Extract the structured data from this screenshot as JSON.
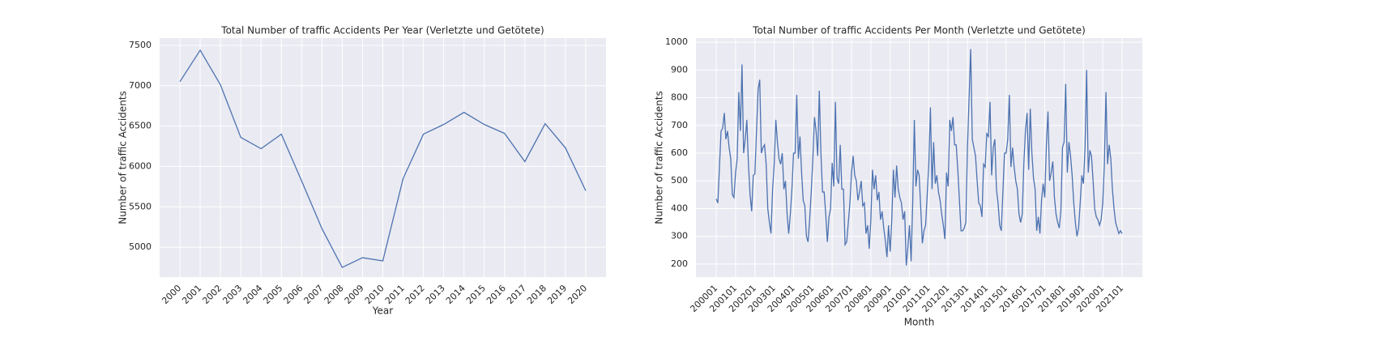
{
  "chart_data": [
    {
      "type": "line",
      "title": "Total Number of traffic Accidents Per Year (Verletzte und Getötete)",
      "x_label": "Year",
      "y_label": "Number of traffic Accidents",
      "x": [
        2000,
        2001,
        2002,
        2003,
        2004,
        2005,
        2006,
        2007,
        2008,
        2009,
        2010,
        2011,
        2012,
        2013,
        2014,
        2015,
        2016,
        2017,
        2018,
        2019,
        2020
      ],
      "values": [
        7050,
        7440,
        7010,
        6360,
        6220,
        6400,
        5820,
        5230,
        4750,
        4870,
        4830,
        5850,
        6400,
        6520,
        6670,
        6520,
        6410,
        6060,
        6530,
        6230,
        5700
      ],
      "color": "#4c72b0",
      "xlim": [
        1999,
        2021
      ],
      "xticks": [
        2000,
        2001,
        2002,
        2003,
        2004,
        2005,
        2006,
        2007,
        2008,
        2009,
        2010,
        2011,
        2012,
        2013,
        2014,
        2015,
        2016,
        2017,
        2018,
        2019,
        2020
      ],
      "ylim": [
        4630,
        7590
      ],
      "yticks": [
        5000,
        5500,
        6000,
        6500,
        7000,
        7500
      ],
      "grid": true
    },
    {
      "type": "line",
      "title": "Total Number of traffic Accidents Per Month (Verletzte und Getötete)",
      "x_label": "Month",
      "y_label": "Number of traffic Accidents",
      "categories": [
        "200001",
        null,
        null,
        null,
        null,
        null,
        null,
        null,
        null,
        null,
        null,
        null,
        "200101",
        null,
        null,
        null,
        null,
        null,
        null,
        null,
        null,
        null,
        null,
        null,
        "200201",
        null,
        null,
        null,
        null,
        null,
        null,
        null,
        null,
        null,
        null,
        null,
        "200301",
        null,
        null,
        null,
        null,
        null,
        null,
        null,
        null,
        null,
        null,
        null,
        "200401",
        null,
        null,
        null,
        null,
        null,
        null,
        null,
        null,
        null,
        null,
        null,
        "200501",
        null,
        null,
        null,
        null,
        null,
        null,
        null,
        null,
        null,
        null,
        null,
        "200601",
        null,
        null,
        null,
        null,
        null,
        null,
        null,
        null,
        null,
        null,
        null,
        "200701",
        null,
        null,
        null,
        null,
        null,
        null,
        null,
        null,
        null,
        null,
        null,
        "200801",
        null,
        null,
        null,
        null,
        null,
        null,
        null,
        null,
        null,
        null,
        null,
        "200901",
        null,
        null,
        null,
        null,
        null,
        null,
        null,
        null,
        null,
        null,
        null,
        "201001",
        null,
        null,
        null,
        null,
        null,
        null,
        null,
        null,
        null,
        null,
        null,
        "201101",
        null,
        null,
        null,
        null,
        null,
        null,
        null,
        null,
        null,
        null,
        null,
        "201201",
        null,
        null,
        null,
        null,
        null,
        null,
        null,
        null,
        null,
        null,
        null,
        "201301",
        null,
        null,
        null,
        null,
        null,
        null,
        null,
        null,
        null,
        null,
        null,
        "201401",
        null,
        null,
        null,
        null,
        null,
        null,
        null,
        null,
        null,
        null,
        null,
        "201501",
        null,
        null,
        null,
        null,
        null,
        null,
        null,
        null,
        null,
        null,
        null,
        "201601",
        null,
        null,
        null,
        null,
        null,
        null,
        null,
        null,
        null,
        null,
        null,
        "201701",
        null,
        null,
        null,
        null,
        null,
        null,
        null,
        null,
        null,
        null,
        null,
        "201801",
        null,
        null,
        null,
        null,
        null,
        null,
        null,
        null,
        null,
        null,
        null,
        "201901",
        null,
        null,
        null,
        null,
        null,
        null,
        null,
        null,
        null,
        null,
        null,
        "202001",
        null,
        null,
        null,
        null,
        null,
        null,
        null,
        null,
        null,
        null,
        null,
        "202101"
      ],
      "values": [
        435,
        420,
        550,
        680,
        690,
        745,
        650,
        680,
        620,
        580,
        450,
        440,
        530,
        580,
        820,
        680,
        920,
        600,
        650,
        720,
        560,
        450,
        390,
        520,
        525,
        680,
        830,
        865,
        600,
        620,
        630,
        560,
        400,
        350,
        310,
        470,
        560,
        720,
        640,
        580,
        560,
        600,
        470,
        500,
        380,
        310,
        380,
        470,
        600,
        600,
        810,
        580,
        660,
        530,
        430,
        410,
        300,
        280,
        360,
        460,
        580,
        730,
        680,
        590,
        825,
        600,
        460,
        460,
        380,
        280,
        370,
        400,
        565,
        480,
        785,
        510,
        490,
        630,
        470,
        470,
        270,
        280,
        350,
        420,
        530,
        590,
        520,
        500,
        430,
        460,
        500,
        410,
        420,
        310,
        340,
        255,
        360,
        540,
        470,
        520,
        430,
        460,
        360,
        390,
        330,
        285,
        225,
        340,
        245,
        360,
        540,
        440,
        555,
        470,
        440,
        420,
        360,
        390,
        195,
        260,
        340,
        210,
        420,
        720,
        480,
        540,
        520,
        400,
        275,
        320,
        340,
        450,
        560,
        765,
        470,
        640,
        490,
        520,
        460,
        430,
        380,
        340,
        290,
        530,
        480,
        720,
        680,
        730,
        630,
        630,
        540,
        430,
        320,
        320,
        330,
        350,
        620,
        800,
        975,
        650,
        620,
        590,
        500,
        420,
        410,
        370,
        560,
        550,
        670,
        660,
        785,
        520,
        620,
        650,
        470,
        420,
        340,
        320,
        460,
        600,
        600,
        650,
        810,
        550,
        620,
        550,
        500,
        470,
        380,
        350,
        380,
        560,
        680,
        745,
        540,
        760,
        600,
        510,
        470,
        320,
        370,
        310,
        430,
        490,
        440,
        630,
        750,
        500,
        530,
        570,
        440,
        380,
        350,
        330,
        390,
        620,
        640,
        850,
        530,
        640,
        590,
        520,
        420,
        350,
        300,
        330,
        420,
        520,
        490,
        620,
        900,
        530,
        610,
        590,
        500,
        400,
        370,
        360,
        340,
        360,
        420,
        560,
        820,
        560,
        630,
        580,
        470,
        400,
        350,
        330,
        310,
        320,
        310
      ],
      "color": "#4c72b0",
      "ylim": [
        153,
        1015
      ],
      "yticks": [
        200,
        300,
        400,
        500,
        600,
        700,
        800,
        900,
        1000
      ],
      "grid": true
    }
  ]
}
